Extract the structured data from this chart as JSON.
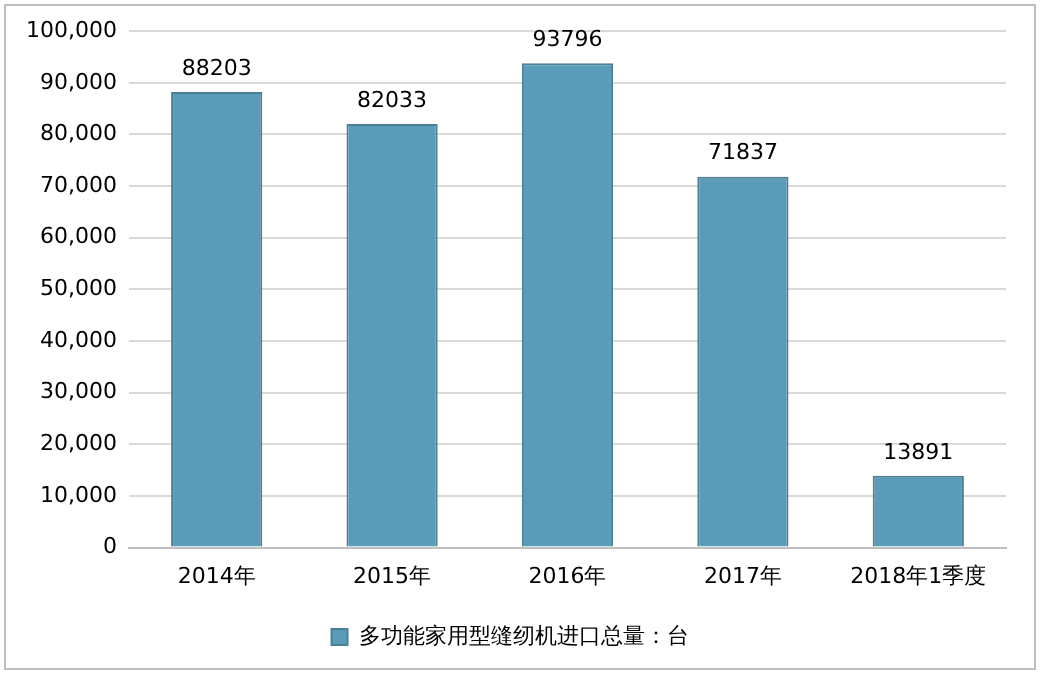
{
  "chart_data": {
    "type": "bar",
    "categories": [
      "2014年",
      "2015年",
      "2016年",
      "2017年",
      "2018年1季度"
    ],
    "series": [
      {
        "name": "多功能家用型缝纫机进口总量：台",
        "color": "#5a9cb8",
        "values": [
          88203,
          82033,
          93796,
          71837,
          13891
        ]
      }
    ],
    "ylim": [
      0,
      100000
    ],
    "yticks": [
      {
        "value": 0,
        "label": "0"
      },
      {
        "value": 10000,
        "label": "10,000"
      },
      {
        "value": 20000,
        "label": "20,000"
      },
      {
        "value": 30000,
        "label": "30,000"
      },
      {
        "value": 40000,
        "label": "40,000"
      },
      {
        "value": 50000,
        "label": "50,000"
      },
      {
        "value": 60000,
        "label": "60,000"
      },
      {
        "value": 70000,
        "label": "70,000"
      },
      {
        "value": 80000,
        "label": "80,000"
      },
      {
        "value": 90000,
        "label": "90,000"
      },
      {
        "value": 100000,
        "label": "100,000"
      }
    ],
    "grid": "y",
    "legend": "bottom",
    "data_labels": true
  }
}
